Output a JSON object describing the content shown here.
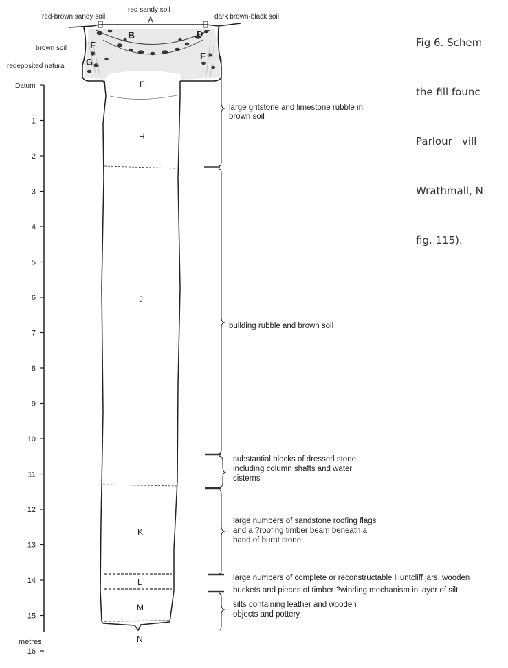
{
  "caption": {
    "lines": [
      "Fig 6. Schem",
      "the fill founc",
      "Parlour   vill",
      "Wrathmall, N",
      "fig. 115)."
    ]
  },
  "soil_labels": {
    "red_brown_sandy": "red-brown sandy soil",
    "red_sandy": "red sandy soil",
    "dark_brown_black": "dark brown-black soil",
    "brown": "brown soil",
    "redeposited_natural": "redeposited natural"
  },
  "scale": {
    "datum_label": "Datum",
    "unit_label": "metres",
    "ticks": [
      "1",
      "2",
      "3",
      "4",
      "5",
      "6",
      "7",
      "8",
      "9",
      "10",
      "11",
      "12",
      "13",
      "14",
      "15",
      "16"
    ]
  },
  "layer_letters": {
    "A": "A",
    "B": "B",
    "D": "D",
    "F_left": "F",
    "F_right": "F",
    "G": "G",
    "E": "E",
    "H": "H",
    "J": "J",
    "K": "K",
    "L": "L",
    "M": "M",
    "N": "N"
  },
  "annotations": {
    "gritstone": [
      "large gritstone and limestone rubble in",
      "brown soil"
    ],
    "building": [
      "building rubble and brown soil"
    ],
    "blocks": [
      "substantial blocks of dressed stone,",
      "including column shafts and water",
      "cisterns"
    ],
    "roofing": [
      "large numbers of sandstone roofing flags",
      "and a ?roofing timber beam beneath a",
      "band of burnt stone"
    ],
    "jars": [
      "large numbers of complete or reconstructable Huntcliff jars, wooden",
      "buckets and pieces of timber ?winding mechanism in layer of silt"
    ],
    "silts": [
      "silts containing leather and wooden",
      "objects and pottery"
    ]
  },
  "colors": {
    "ink": "#222222",
    "rubble": "#3a3a3a",
    "hatch": "#bbbbbb"
  }
}
